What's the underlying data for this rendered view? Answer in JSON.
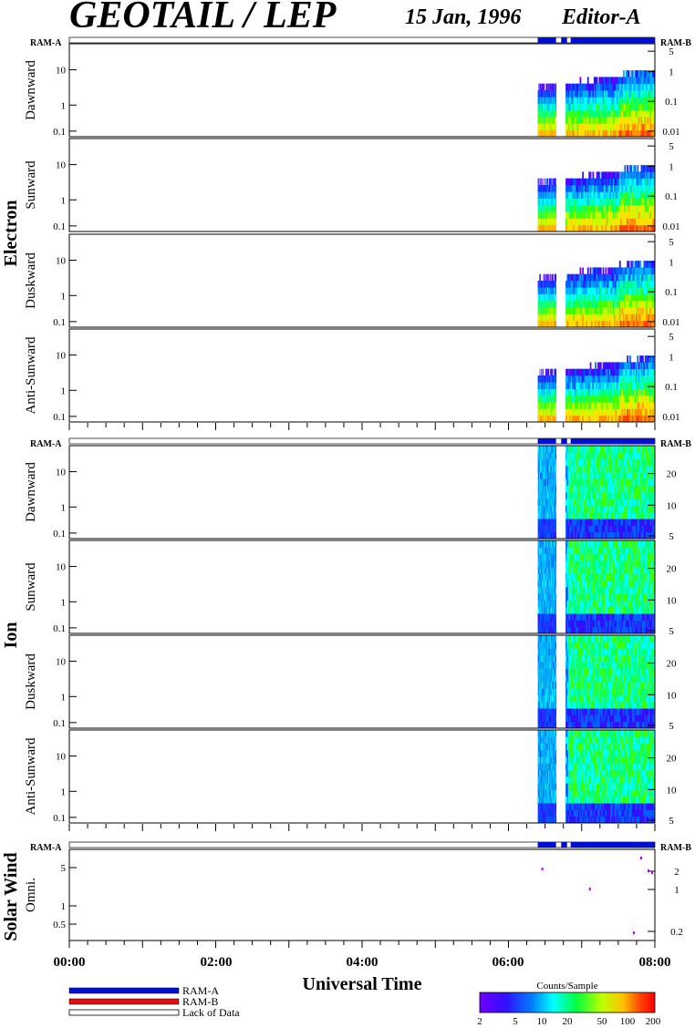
{
  "header": {
    "instrument": "GEOTAIL / LEP",
    "date": "15 Jan, 1996",
    "editor": "Editor-A"
  },
  "colors": {
    "ram_a": "#0010d0",
    "ram_b": "#e01010",
    "lack_of_data": "#ffffff"
  },
  "ram_bar": {
    "left_label": "RAM-A",
    "right_label": "RAM-B"
  },
  "groups": [
    {
      "name": "Electron",
      "panels": [
        {
          "name": "Dawnward",
          "left_ticks": [
            "10",
            "1",
            "0.1"
          ],
          "right_ticks": [
            "5",
            "1",
            "0.1",
            "0.01"
          ]
        },
        {
          "name": "Sunward",
          "left_ticks": [
            "10",
            "1",
            "0.1"
          ],
          "right_ticks": [
            "5",
            "1",
            "0.1",
            "0.01"
          ]
        },
        {
          "name": "Duskward",
          "left_ticks": [
            "10",
            "1",
            "0.1"
          ],
          "right_ticks": [
            "5",
            "1",
            "0.1",
            "0.01"
          ]
        },
        {
          "name": "Anti-Sunward",
          "left_ticks": [
            "10",
            "1",
            "0.1"
          ],
          "right_ticks": [
            "5",
            "1",
            "0.1",
            "0.01"
          ]
        }
      ]
    },
    {
      "name": "Ion",
      "panels": [
        {
          "name": "Dawnward",
          "left_ticks": [
            "10",
            "1",
            "0.1"
          ],
          "right_ticks": [
            "20",
            "10",
            "5"
          ]
        },
        {
          "name": "Sunward",
          "left_ticks": [
            "10",
            "1",
            "0.1"
          ],
          "right_ticks": [
            "20",
            "10",
            "5"
          ]
        },
        {
          "name": "Duskward",
          "left_ticks": [
            "10",
            "1",
            "0.1"
          ],
          "right_ticks": [
            "20",
            "10",
            "5"
          ]
        },
        {
          "name": "Anti-Sunward",
          "left_ticks": [
            "10",
            "1",
            "0.1"
          ],
          "right_ticks": [
            "20",
            "10",
            "5"
          ]
        }
      ]
    },
    {
      "name": "Solar Wind",
      "panels": [
        {
          "name": "Omni.",
          "left_ticks": [
            "5",
            "1",
            "0.5"
          ],
          "right_ticks": [
            "2",
            "1",
            "0.2"
          ]
        }
      ]
    }
  ],
  "x_axis": {
    "label": "Universal Time",
    "ticks": [
      "00:00",
      "02:00",
      "04:00",
      "06:00",
      "08:00"
    ]
  },
  "legend": {
    "items": [
      "RAM-A",
      "RAM-B",
      "Lack of Data"
    ]
  },
  "colorbar": {
    "title": "Counts/Sample",
    "ticks": [
      "2",
      "5",
      "10",
      "20",
      "50",
      "100",
      "200"
    ]
  },
  "chart_data": {
    "type": "heatmap",
    "title": "GEOTAIL / LEP",
    "xlabel": "Universal Time",
    "x_range_hours": [
      0,
      8
    ],
    "x_ticks": [
      "00:00",
      "02:00",
      "04:00",
      "06:00",
      "08:00"
    ],
    "ram_a_intervals_hours": [
      [
        6.4,
        6.65
      ],
      [
        6.72,
        6.8
      ]
    ],
    "ram_a_plus_intervals_hours": [
      [
        6.85,
        8.0
      ]
    ],
    "data_intervals_hours": [
      [
        6.4,
        6.65
      ],
      [
        6.78,
        8.0
      ]
    ],
    "colorbar": {
      "label": "Counts/Sample",
      "range": [
        2,
        200
      ],
      "scale": "log"
    },
    "electron_panels": [
      "Dawnward",
      "Sunward",
      "Duskward",
      "Anti-Sunward"
    ],
    "ion_panels": [
      "Dawnward",
      "Sunward",
      "Duskward",
      "Anti-Sunward"
    ],
    "solar_wind_panels": [
      "Omni."
    ],
    "electron_yscale": "log",
    "ion_yscale": "log",
    "solar_wind_points_hours": [
      6.45,
      7.1,
      7.8,
      7.9,
      7.95,
      7.7
    ]
  }
}
